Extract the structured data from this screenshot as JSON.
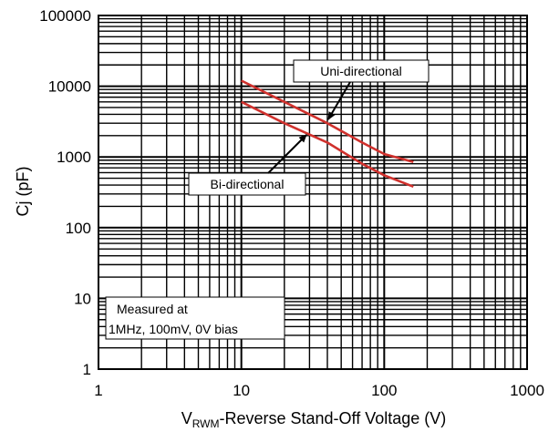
{
  "chart_data": {
    "type": "line",
    "x_scale": "log",
    "y_scale": "log",
    "xlim": [
      1,
      1000
    ],
    "ylim": [
      1,
      100000
    ],
    "x_ticks": [
      "1",
      "10",
      "100",
      "1000"
    ],
    "y_ticks": [
      "100000",
      "10000",
      "1000",
      "100",
      "10",
      "1"
    ],
    "xlabel_main": "V",
    "xlabel_sub": "RWM",
    "xlabel_rest": "-Reverse Stand-Off Voltage (V)",
    "ylabel": "Cj (pF)",
    "grid": true,
    "series": [
      {
        "name": "Uni-directional",
        "color": "#d0312d",
        "x": [
          10,
          20,
          40,
          70,
          100,
          160
        ],
        "y": [
          12000,
          6000,
          3000,
          1600,
          1100,
          850
        ]
      },
      {
        "name": "Bi-directional",
        "color": "#d0312d",
        "x": [
          10,
          20,
          40,
          70,
          100,
          160
        ],
        "y": [
          6000,
          3000,
          1600,
          800,
          550,
          380
        ]
      }
    ],
    "note_lines": [
      "Measured at",
      "1MHz, 100mV, 0V bias"
    ]
  }
}
